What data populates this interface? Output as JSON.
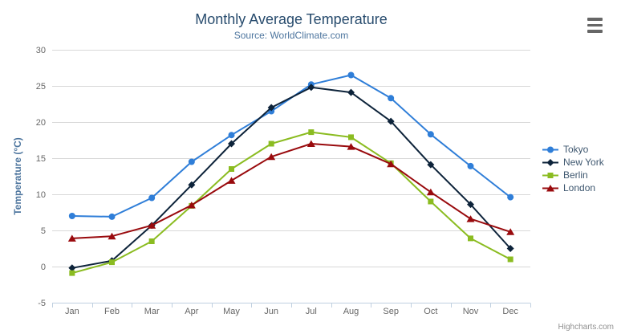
{
  "chart_data": {
    "type": "line",
    "title": "Monthly Average Temperature",
    "subtitle": "Source: WorldClimate.com",
    "credits": "Highcharts.com",
    "xlabel": "",
    "ylabel": "Temperature (°C)",
    "ylim": [
      -5,
      30
    ],
    "ytick_step": 5,
    "grid": true,
    "legend_position": "right",
    "categories": [
      "Jan",
      "Feb",
      "Mar",
      "Apr",
      "May",
      "Jun",
      "Jul",
      "Aug",
      "Sep",
      "Oct",
      "Nov",
      "Dec"
    ],
    "series": [
      {
        "name": "Tokyo",
        "color": "#2f7ed8",
        "marker": "circle",
        "values": [
          7.0,
          6.9,
          9.5,
          14.5,
          18.2,
          21.5,
          25.2,
          26.5,
          23.3,
          18.3,
          13.9,
          9.6
        ]
      },
      {
        "name": "New York",
        "color": "#0d233a",
        "marker": "diamond",
        "values": [
          -0.2,
          0.8,
          5.7,
          11.3,
          17.0,
          22.0,
          24.8,
          24.1,
          20.1,
          14.1,
          8.6,
          2.5
        ]
      },
      {
        "name": "Berlin",
        "color": "#8bbc21",
        "marker": "square",
        "values": [
          -0.9,
          0.6,
          3.5,
          8.4,
          13.5,
          17.0,
          18.6,
          17.9,
          14.3,
          9.0,
          3.9,
          1.0
        ]
      },
      {
        "name": "London",
        "color": "#990a0d",
        "marker": "triangle",
        "values": [
          3.9,
          4.2,
          5.7,
          8.5,
          11.9,
          15.2,
          17.0,
          16.6,
          14.2,
          10.3,
          6.6,
          4.8
        ]
      }
    ],
    "style_colors": {
      "title": "#274b6d",
      "subtitle": "#4d759e",
      "axis_title": "#4d759e",
      "tick_labels": "#666666",
      "gridline": "#d8d8d8",
      "axis_line": "#c0d0e0",
      "legend_text": "#3e576f",
      "credits_text": "#909090"
    }
  }
}
